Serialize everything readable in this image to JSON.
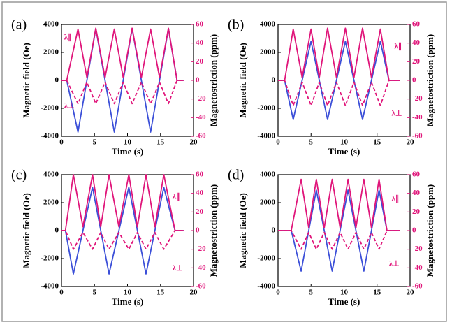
{
  "chart_data": [
    {
      "type": "line",
      "label": "(a)",
      "xlabel": "Time (s)",
      "ylabel": "Magnetic field (Oe)",
      "y2label": "Magnetostriction (ppm)",
      "x": [
        0,
        0.8,
        2.5,
        3.85,
        5.2,
        6.6,
        8.0,
        9.35,
        10.7,
        12.1,
        13.5,
        14.85,
        16.2,
        17.5,
        18.5
      ],
      "series": [
        {
          "color": "#3b4fd8",
          "linestyle": "solid",
          "values": [
            0,
            0,
            -3700,
            0,
            3700,
            0,
            -3700,
            0,
            3700,
            0,
            -3700,
            0,
            3700,
            0,
            0
          ]
        },
        {
          "name": "λ∥",
          "axis": "y2",
          "color": "#e0157a",
          "linestyle": "solid",
          "values": [
            0,
            0,
            55,
            3,
            56,
            3,
            55,
            3,
            56,
            3,
            55,
            3,
            56,
            0,
            0
          ]
        },
        {
          "name": "λ⊥",
          "axis": "y2",
          "color": "#e0157a",
          "linestyle": "dashed",
          "values": [
            0,
            0,
            -25,
            -2,
            -25,
            -2,
            -25,
            -2,
            -25,
            -2,
            -25,
            -2,
            -25,
            0,
            0
          ]
        }
      ],
      "xlim": [
        0,
        20
      ],
      "xticks": [
        0,
        5,
        10,
        15,
        20
      ],
      "ylim": [
        -4000,
        4000
      ],
      "yticks": [
        -4000,
        -2000,
        0,
        2000,
        4000
      ],
      "y2lim": [
        -60,
        60
      ],
      "y2ticks": [
        -60,
        -40,
        -20,
        0,
        20,
        40,
        60
      ]
    },
    {
      "type": "line",
      "label": "(b)",
      "xlabel": "Time (s)",
      "ylabel": "Magnetic field (Oe)",
      "y2label": "Magnetostriction (ppm)",
      "x": [
        0,
        1,
        2.3,
        3.65,
        5,
        6.25,
        7.5,
        8.85,
        10.2,
        11.5,
        12.8,
        14.15,
        15.5,
        16.8,
        18.5
      ],
      "series": [
        {
          "color": "#3b4fd8",
          "linestyle": "solid",
          "values": [
            0,
            0,
            -2800,
            0,
            2800,
            0,
            -2800,
            0,
            2800,
            0,
            -2800,
            0,
            2800,
            0,
            0
          ]
        },
        {
          "name": "λ∥",
          "axis": "y2",
          "color": "#e0157a",
          "linestyle": "solid",
          "values": [
            0,
            0,
            55,
            3,
            55,
            3,
            56,
            3,
            56,
            3,
            56,
            3,
            55,
            0,
            0
          ]
        },
        {
          "name": "λ⊥",
          "axis": "y2",
          "color": "#e0157a",
          "linestyle": "dashed",
          "values": [
            0,
            0,
            -27,
            -2,
            -27,
            -2,
            -27,
            -2,
            -27,
            -2,
            -27,
            -2,
            -27,
            0,
            0
          ]
        }
      ],
      "xlim": [
        0,
        20
      ],
      "xticks": [
        0,
        5,
        10,
        15,
        20
      ],
      "ylim": [
        -4000,
        4000
      ],
      "yticks": [
        -4000,
        -2000,
        0,
        2000,
        4000
      ],
      "y2lim": [
        -60,
        60
      ],
      "y2ticks": [
        -60,
        -40,
        -20,
        0,
        20,
        40,
        60
      ]
    },
    {
      "type": "line",
      "label": "(c)",
      "xlabel": "Time (s)",
      "ylabel": "Magnetic field (Oe)",
      "y2label": "Magnetostriction (ppm)",
      "x": [
        0,
        0.6,
        1.8,
        3.25,
        4.7,
        5.95,
        7.2,
        8.7,
        10.2,
        11.5,
        12.8,
        14.15,
        15.5,
        17.2,
        18.5
      ],
      "series": [
        {
          "color": "#3b4fd8",
          "linestyle": "solid",
          "values": [
            0,
            0,
            -3100,
            0,
            3100,
            0,
            -3100,
            0,
            3100,
            0,
            -3100,
            0,
            3100,
            0,
            0
          ]
        },
        {
          "name": "λ∥",
          "axis": "y2",
          "color": "#e0157a",
          "linestyle": "solid",
          "values": [
            0,
            0,
            60,
            4,
            60,
            4,
            60,
            4,
            60,
            4,
            60,
            4,
            60,
            0,
            0
          ]
        },
        {
          "name": "λ⊥",
          "axis": "y2",
          "color": "#e0157a",
          "linestyle": "dashed",
          "values": [
            0,
            0,
            -20,
            -2,
            -20,
            -2,
            -20,
            -2,
            -20,
            -2,
            -20,
            -2,
            -20,
            0,
            0
          ]
        }
      ],
      "xlim": [
        0,
        20
      ],
      "xticks": [
        0,
        5,
        10,
        15,
        20
      ],
      "ylim": [
        -4000,
        4000
      ],
      "yticks": [
        -4000,
        -2000,
        0,
        2000,
        4000
      ],
      "y2lim": [
        -60,
        60
      ],
      "y2ticks": [
        -60,
        -40,
        -20,
        0,
        20,
        40,
        60
      ]
    },
    {
      "type": "line",
      "label": "(d)",
      "xlabel": "Time (s)",
      "ylabel": "Magnetic field (Oe)",
      "y2label": "Magnetostriction (ppm)",
      "x": [
        0,
        2,
        3.5,
        4.65,
        5.8,
        7.0,
        8.2,
        9.4,
        10.6,
        11.8,
        13.0,
        14.15,
        15.3,
        16.5,
        18.5
      ],
      "series": [
        {
          "color": "#3b4fd8",
          "linestyle": "solid",
          "values": [
            0,
            0,
            -2900,
            0,
            2900,
            0,
            -2900,
            0,
            2900,
            0,
            -2900,
            0,
            2900,
            0,
            0
          ]
        },
        {
          "name": "λ∥",
          "axis": "y2",
          "color": "#e0157a",
          "linestyle": "solid",
          "values": [
            0,
            0,
            55,
            3,
            55,
            3,
            55,
            3,
            55,
            3,
            55,
            3,
            55,
            0,
            0
          ]
        },
        {
          "name": "λ⊥",
          "axis": "y2",
          "color": "#e0157a",
          "linestyle": "dashed",
          "values": [
            0,
            0,
            -20,
            -2,
            -20,
            -2,
            -20,
            -2,
            -20,
            -2,
            -20,
            -2,
            -20,
            0,
            0
          ]
        }
      ],
      "xlim": [
        0,
        20
      ],
      "xticks": [
        0,
        5,
        10,
        15,
        20
      ],
      "ylim": [
        -4000,
        4000
      ],
      "yticks": [
        -4000,
        -2000,
        0,
        2000,
        4000
      ],
      "y2lim": [
        -60,
        60
      ],
      "y2ticks": [
        -60,
        -40,
        -20,
        0,
        20,
        40,
        60
      ]
    }
  ]
}
